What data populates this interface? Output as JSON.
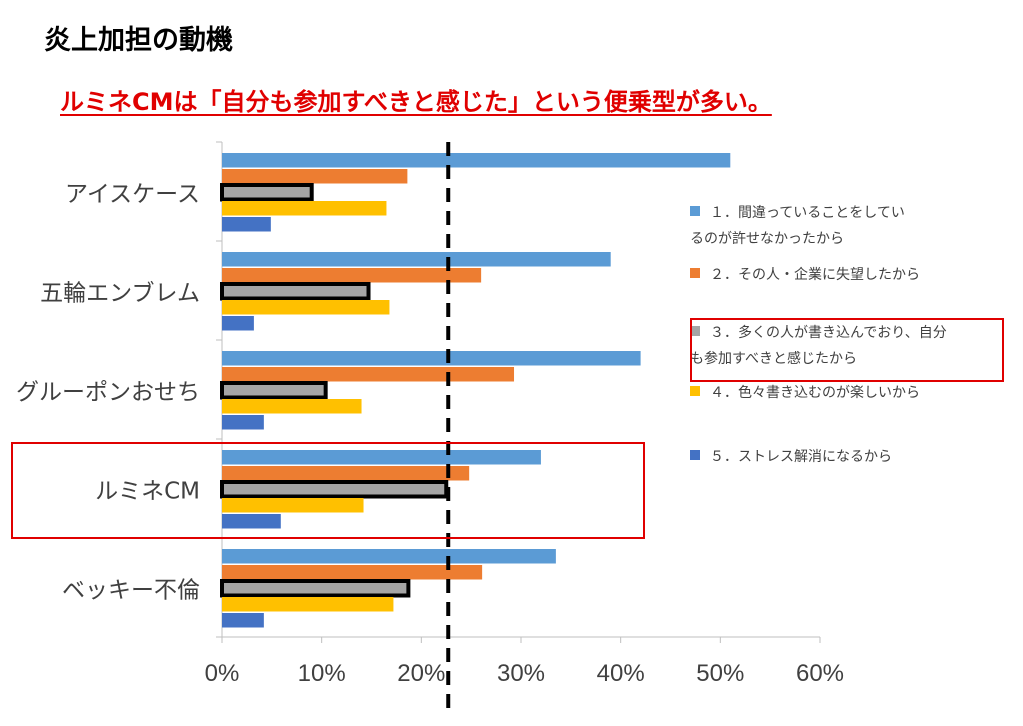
{
  "title": "炎上加担の動機",
  "subtitle": "ルミネCMは「自分も参加すべきと感じた」という便乗型が多い。",
  "chart_data": {
    "type": "bar",
    "orientation": "horizontal",
    "categories": [
      "アイスケース",
      "五輪エンブレム",
      "グルーポンおせち",
      "ルミネCM",
      "ベッキー不倫"
    ],
    "series": [
      {
        "name": "１．間違っていることをしているのが許せなかったから",
        "values": [
          51,
          39,
          42,
          32,
          33.5
        ]
      },
      {
        "name": "２．その人・企業に失望したから",
        "values": [
          18.6,
          26,
          29.3,
          24.8,
          26.1
        ]
      },
      {
        "name": "３．多くの人が書き込んでおり、自分も参加すべきと感じたから",
        "values": [
          9,
          14.7,
          10.4,
          22.5,
          18.7
        ]
      },
      {
        "name": "４．色々書き込むのが楽しいから",
        "values": [
          16.5,
          16.8,
          14,
          14.2,
          17.2
        ]
      },
      {
        "name": "５．ストレス解消になるから",
        "values": [
          4.9,
          3.2,
          4.2,
          5.9,
          4.2
        ]
      }
    ],
    "series_colors": [
      "#5b9bd5",
      "#ed7d31",
      "#a5a5a5",
      "#ffc000",
      "#4472c4"
    ],
    "xlim": [
      0,
      60
    ],
    "xticks": [
      "0%",
      "10%",
      "20%",
      "30%",
      "40%",
      "50%",
      "60%"
    ],
    "reference_line": 22.7,
    "highlighted_category": "ルミネCM",
    "highlighted_series": "３．多くの人が書き込んでおり、自分も参加すべきと感じたから",
    "legend_position": "right",
    "grid": false
  }
}
